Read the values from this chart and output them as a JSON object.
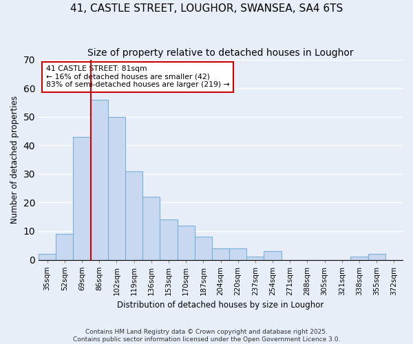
{
  "title1": "41, CASTLE STREET, LOUGHOR, SWANSEA, SA4 6TS",
  "title2": "Size of property relative to detached houses in Loughor",
  "xlabel": "Distribution of detached houses by size in Loughor",
  "ylabel": "Number of detached properties",
  "categories": [
    "35sqm",
    "52sqm",
    "69sqm",
    "86sqm",
    "102sqm",
    "119sqm",
    "136sqm",
    "153sqm",
    "170sqm",
    "187sqm",
    "204sqm",
    "220sqm",
    "237sqm",
    "254sqm",
    "271sqm",
    "288sqm",
    "305sqm",
    "321sqm",
    "338sqm",
    "355sqm",
    "372sqm"
  ],
  "values": [
    2,
    9,
    43,
    56,
    50,
    31,
    22,
    14,
    12,
    8,
    4,
    4,
    1,
    3,
    0,
    0,
    0,
    0,
    1,
    2,
    0
  ],
  "bar_color": "#c8d8f0",
  "bar_edge_color": "#7ab0d8",
  "vline_color": "#cc0000",
  "vline_x": 3.0,
  "annotation_text": "41 CASTLE STREET: 81sqm\n← 16% of detached houses are smaller (42)\n83% of semi-detached houses are larger (219) →",
  "annotation_box_color": "#ffffff",
  "annotation_box_edge": "#cc0000",
  "ylim": [
    0,
    70
  ],
  "yticks": [
    0,
    10,
    20,
    30,
    40,
    50,
    60,
    70
  ],
  "footer_text": "Contains HM Land Registry data © Crown copyright and database right 2025.\nContains public sector information licensed under the Open Government Licence 3.0.",
  "bg_color": "#e8eef8",
  "plot_bg_color": "#e8eef8",
  "grid_color": "#ffffff",
  "title_fontsize": 11,
  "subtitle_fontsize": 10
}
